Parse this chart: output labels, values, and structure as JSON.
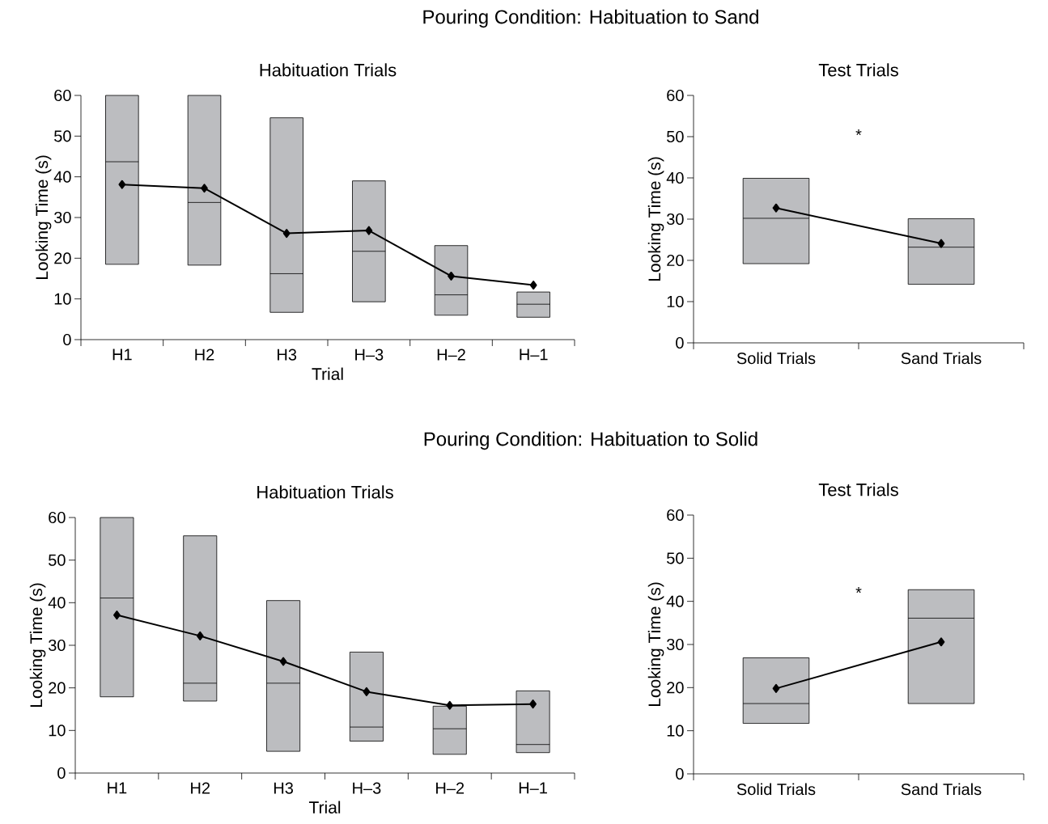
{
  "chart_data": [
    {
      "type": "box",
      "title": "Habituation Trials",
      "xlabel": "Trial",
      "ylabel": "Looking Time (s)",
      "categories": [
        "H1",
        "H2",
        "H3",
        "H–3",
        "H–2",
        "H–1"
      ],
      "ylim": [
        0,
        60
      ],
      "yticks": [
        0,
        10,
        20,
        30,
        40,
        50,
        60
      ],
      "grid": false,
      "annotations": [
        "Pouring Condition: Habituation to Sand"
      ],
      "series": [
        {
          "color": "#bcbdc0",
          "boxes": [
            {
              "low": 18.5,
              "q1": 18.5,
              "median": 43.7,
              "q3": 60,
              "high": 60
            },
            {
              "low": 18.3,
              "q1": 18.3,
              "median": 33.7,
              "q3": 60,
              "high": 60
            },
            {
              "low": 6.7,
              "q1": 6.7,
              "median": 16.2,
              "q3": 54.5,
              "high": 54.5
            },
            {
              "low": 9.3,
              "q1": 9.3,
              "median": 21.7,
              "q3": 39.0,
              "high": 39.0
            },
            {
              "low": 6.0,
              "q1": 6.0,
              "median": 11.0,
              "q3": 23.1,
              "high": 23.1
            },
            {
              "low": 5.5,
              "q1": 5.5,
              "median": 8.7,
              "q3": 11.7,
              "high": 11.7
            }
          ]
        },
        {
          "type": "line",
          "color": "#000000",
          "marker": "diamond",
          "line_style": "solid",
          "values": [
            38.1,
            37.2,
            26.1,
            26.8,
            15.6,
            13.4
          ]
        }
      ]
    },
    {
      "type": "box",
      "title": "Test Trials",
      "ylabel": "Looking Time (s)",
      "categories": [
        "Solid Trials",
        "Sand Trials"
      ],
      "ylim": [
        0,
        60
      ],
      "yticks": [
        0,
        10,
        20,
        30,
        40,
        50,
        60
      ],
      "grid": false,
      "annotations": [
        "*"
      ],
      "series": [
        {
          "color": "#bcbdc0",
          "boxes": [
            {
              "low": 19.2,
              "q1": 19.2,
              "median": 30.2,
              "q3": 39.9,
              "high": 39.9
            },
            {
              "low": 14.2,
              "q1": 14.2,
              "median": 23.2,
              "q3": 30.1,
              "high": 30.1
            }
          ]
        },
        {
          "type": "line",
          "color": "#000000",
          "marker": "diamond",
          "line_style": "solid",
          "values": [
            32.7,
            24.1
          ]
        }
      ]
    },
    {
      "type": "box",
      "title": "Habituation Trials",
      "xlabel": "Trial",
      "ylabel": "Looking Time (s)",
      "categories": [
        "H1",
        "H2",
        "H3",
        "H–3",
        "H–2",
        "H–1"
      ],
      "ylim": [
        0,
        60
      ],
      "yticks": [
        0,
        10,
        20,
        30,
        40,
        50,
        60
      ],
      "grid": false,
      "annotations": [
        "Pouring Condition: Habituation to Solid"
      ],
      "series": [
        {
          "color": "#bcbdc0",
          "boxes": [
            {
              "low": 17.9,
              "q1": 17.9,
              "median": 41.1,
              "q3": 60,
              "high": 60
            },
            {
              "low": 16.9,
              "q1": 16.9,
              "median": 21.1,
              "q3": 55.7,
              "high": 55.7
            },
            {
              "low": 5.1,
              "q1": 5.1,
              "median": 21.1,
              "q3": 40.5,
              "high": 40.5
            },
            {
              "low": 7.5,
              "q1": 7.5,
              "median": 10.8,
              "q3": 28.4,
              "high": 28.4
            },
            {
              "low": 4.4,
              "q1": 4.4,
              "median": 10.4,
              "q3": 15.7,
              "high": 15.7
            },
            {
              "low": 4.8,
              "q1": 4.8,
              "median": 6.7,
              "q3": 19.3,
              "high": 19.3
            }
          ]
        },
        {
          "type": "line",
          "color": "#000000",
          "marker": "diamond",
          "line_style": "solid",
          "values": [
            37.1,
            32.2,
            26.2,
            19.1,
            15.9,
            16.2
          ]
        }
      ]
    },
    {
      "type": "box",
      "title": "Test Trials",
      "ylabel": "Looking Time (s)",
      "categories": [
        "Solid Trials",
        "Sand Trials"
      ],
      "ylim": [
        0,
        60
      ],
      "yticks": [
        0,
        10,
        20,
        30,
        40,
        50,
        60
      ],
      "grid": false,
      "annotations": [
        "*"
      ],
      "series": [
        {
          "color": "#bcbdc0",
          "boxes": [
            {
              "low": 11.7,
              "q1": 11.7,
              "median": 16.3,
              "q3": 26.9,
              "high": 26.9
            },
            {
              "low": 16.3,
              "q1": 16.3,
              "median": 36.1,
              "q3": 42.7,
              "high": 42.7
            }
          ]
        },
        {
          "type": "line",
          "color": "#000000",
          "marker": "diamond",
          "line_style": "solid",
          "values": [
            19.8,
            30.6
          ]
        }
      ]
    }
  ]
}
